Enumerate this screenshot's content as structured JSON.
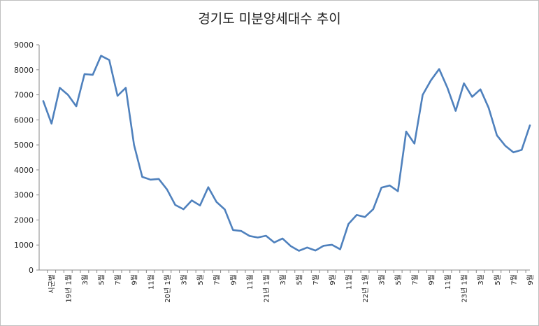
{
  "chart_data": {
    "type": "line",
    "title": "경기도 미분양세대수 추이",
    "xlabel": "",
    "ylabel": "",
    "ylim": [
      0,
      9000
    ],
    "yticks": [
      0,
      1000,
      2000,
      3000,
      4000,
      5000,
      6000,
      7000,
      8000,
      9000
    ],
    "grid": false,
    "line_color": "#4f81bd",
    "x_tick_labels": [
      "시군별",
      "19년 1월",
      "3월",
      "5월",
      "7월",
      "9월",
      "11월",
      "20년 1월",
      "3월",
      "5월",
      "7월",
      "9월",
      "11월",
      "21년 1월",
      "3월",
      "5월",
      "7월",
      "9월",
      "11월",
      "22년 1월",
      "3월",
      "5월",
      "7월",
      "9월",
      "11월",
      "23년 1월",
      "3월",
      "5월",
      "7월",
      "9월"
    ],
    "values": [
      6750,
      5850,
      7280,
      7000,
      6540,
      7830,
      7800,
      8560,
      8390,
      6960,
      7280,
      5000,
      3720,
      3610,
      3640,
      3220,
      2600,
      2430,
      2780,
      2580,
      3310,
      2720,
      2420,
      1600,
      1560,
      1360,
      1300,
      1370,
      1100,
      1260,
      960,
      770,
      900,
      780,
      970,
      1010,
      830,
      1840,
      2200,
      2120,
      2430,
      3290,
      3380,
      3150,
      5530,
      5050,
      7000,
      7580,
      8030,
      7280,
      6360,
      7460,
      6920,
      7220,
      6480,
      5380,
      4970,
      4700,
      4800,
      5780
    ]
  }
}
